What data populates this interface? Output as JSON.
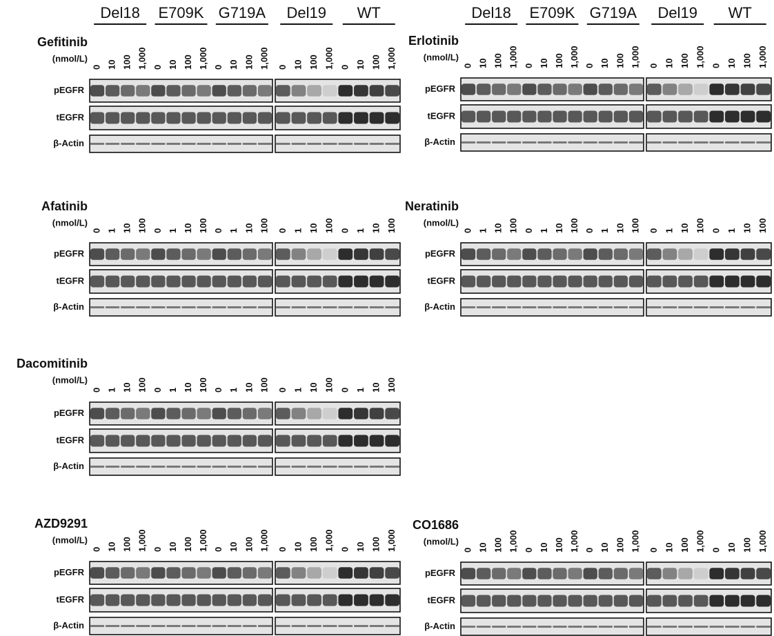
{
  "groups": [
    "Del18",
    "E709K",
    "G719A",
    "Del19",
    "WT"
  ],
  "panels": [
    {
      "drug": "Gefitinib",
      "unit": "(nmol/L)",
      "doses": [
        "0",
        "10",
        "100",
        "1,000"
      ],
      "rows": [
        "pEGFR",
        "tEGFR",
        "β-Actin"
      ]
    },
    {
      "drug": "Erlotinib",
      "unit": "(nmol/L)",
      "doses": [
        "0",
        "10",
        "100",
        "1,000"
      ],
      "rows": [
        "pEGFR",
        "tEGFR",
        "β-Actin"
      ]
    },
    {
      "drug": "Afatinib",
      "unit": "(nmol/L)",
      "doses": [
        "0",
        "1",
        "10",
        "100"
      ],
      "rows": [
        "pEGFR",
        "tEGFR",
        "β-Actin"
      ]
    },
    {
      "drug": "Neratinib",
      "unit": "(nmol/L)",
      "doses": [
        "0",
        "1",
        "10",
        "100"
      ],
      "rows": [
        "pEGFR",
        "tEGFR",
        "β-Actin"
      ]
    },
    {
      "drug": "Dacomitinib",
      "unit": "(nmol/L)",
      "doses": [
        "0",
        "1",
        "10",
        "100"
      ],
      "rows": [
        "pEGFR",
        "tEGFR",
        "β-Actin"
      ]
    },
    {
      "drug": "AZD9291",
      "unit": "(nmol/L)",
      "doses": [
        "0",
        "10",
        "100",
        "1,000"
      ],
      "rows": [
        "pEGFR",
        "tEGFR",
        "β-Actin"
      ]
    },
    {
      "drug": "CO1686",
      "unit": "(nmol/L)",
      "doses": [
        "0",
        "10",
        "100",
        "1,000"
      ],
      "rows": [
        "pEGFR",
        "tEGFR",
        "β-Actin"
      ]
    }
  ]
}
